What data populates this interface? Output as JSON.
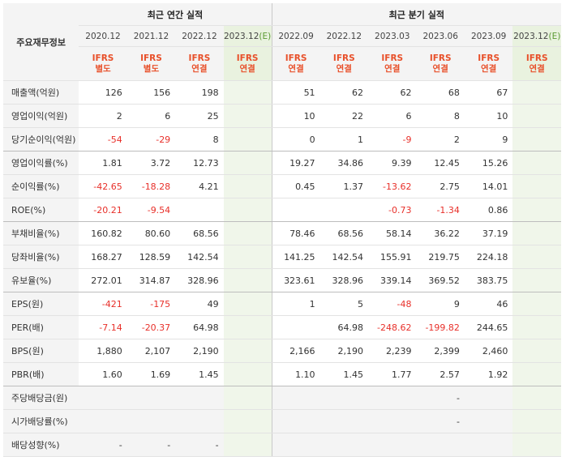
{
  "corner_label": "주요재무정보",
  "groups": {
    "annual": "최근 연간 실적",
    "quarterly": "최근 분기 실적"
  },
  "periods": [
    {
      "label": "2020.12",
      "est": "",
      "ifrs": "IFRS",
      "basis": "별도"
    },
    {
      "label": "2021.12",
      "est": "",
      "ifrs": "IFRS",
      "basis": "별도"
    },
    {
      "label": "2022.12",
      "est": "",
      "ifrs": "IFRS",
      "basis": "연결"
    },
    {
      "label": "2023.12",
      "est": "(E)",
      "ifrs": "IFRS",
      "basis": "연결"
    },
    {
      "label": "2022.09",
      "est": "",
      "ifrs": "IFRS",
      "basis": "연결"
    },
    {
      "label": "2022.12",
      "est": "",
      "ifrs": "IFRS",
      "basis": "연결"
    },
    {
      "label": "2023.03",
      "est": "",
      "ifrs": "IFRS",
      "basis": "연결"
    },
    {
      "label": "2023.06",
      "est": "",
      "ifrs": "IFRS",
      "basis": "연결"
    },
    {
      "label": "2023.09",
      "est": "",
      "ifrs": "IFRS",
      "basis": "연결"
    },
    {
      "label": "2023.12",
      "est": "(E)",
      "ifrs": "IFRS",
      "basis": "연결"
    }
  ],
  "rows": [
    {
      "label": "매출액(억원)",
      "values": [
        "126",
        "156",
        "198",
        "",
        "51",
        "62",
        "62",
        "68",
        "67",
        ""
      ]
    },
    {
      "label": "영업이익(억원)",
      "values": [
        "2",
        "6",
        "25",
        "",
        "10",
        "22",
        "6",
        "8",
        "10",
        ""
      ]
    },
    {
      "label": "당기순이익(억원)",
      "values": [
        "-54",
        "-29",
        "8",
        "",
        "0",
        "1",
        "-9",
        "2",
        "9",
        ""
      ]
    },
    {
      "label": "영업이익률(%)",
      "values": [
        "1.81",
        "3.72",
        "12.73",
        "",
        "19.27",
        "34.86",
        "9.39",
        "12.45",
        "15.26",
        ""
      ]
    },
    {
      "label": "순이익률(%)",
      "values": [
        "-42.65",
        "-18.28",
        "4.21",
        "",
        "0.45",
        "1.37",
        "-13.62",
        "2.75",
        "14.01",
        ""
      ]
    },
    {
      "label": "ROE(%)",
      "values": [
        "-20.21",
        "-9.54",
        "",
        "",
        "",
        "",
        "-0.73",
        "-1.34",
        "0.86",
        ""
      ]
    },
    {
      "label": "부채비율(%)",
      "values": [
        "160.82",
        "80.60",
        "68.56",
        "",
        "78.46",
        "68.56",
        "58.14",
        "36.22",
        "37.19",
        ""
      ]
    },
    {
      "label": "당좌비율(%)",
      "values": [
        "168.27",
        "128.59",
        "142.54",
        "",
        "141.25",
        "142.54",
        "155.91",
        "219.75",
        "224.18",
        ""
      ]
    },
    {
      "label": "유보율(%)",
      "values": [
        "272.01",
        "314.87",
        "328.96",
        "",
        "323.61",
        "328.96",
        "339.14",
        "369.52",
        "383.75",
        ""
      ]
    },
    {
      "label": "EPS(원)",
      "values": [
        "-421",
        "-175",
        "49",
        "",
        "1",
        "5",
        "-48",
        "9",
        "46",
        ""
      ]
    },
    {
      "label": "PER(배)",
      "values": [
        "-7.14",
        "-20.37",
        "64.98",
        "",
        "",
        "64.98",
        "-248.62",
        "-199.82",
        "244.65",
        ""
      ]
    },
    {
      "label": "BPS(원)",
      "values": [
        "1,880",
        "2,107",
        "2,190",
        "",
        "2,166",
        "2,190",
        "2,239",
        "2,399",
        "2,460",
        ""
      ]
    },
    {
      "label": "PBR(배)",
      "values": [
        "1.60",
        "1.69",
        "1.45",
        "",
        "1.10",
        "1.45",
        "1.77",
        "2.57",
        "1.92",
        ""
      ]
    },
    {
      "label": "주당배당금(원)",
      "values": [
        "",
        "",
        "",
        "",
        "",
        "",
        "",
        "-",
        "",
        ""
      ]
    },
    {
      "label": "시가배당률(%)",
      "values": [
        "",
        "",
        "",
        "",
        "",
        "",
        "",
        "-",
        "",
        ""
      ]
    },
    {
      "label": "배당성향(%)",
      "values": [
        "-",
        "-",
        "-",
        "",
        "",
        "",
        "",
        "",
        "",
        ""
      ]
    }
  ]
}
